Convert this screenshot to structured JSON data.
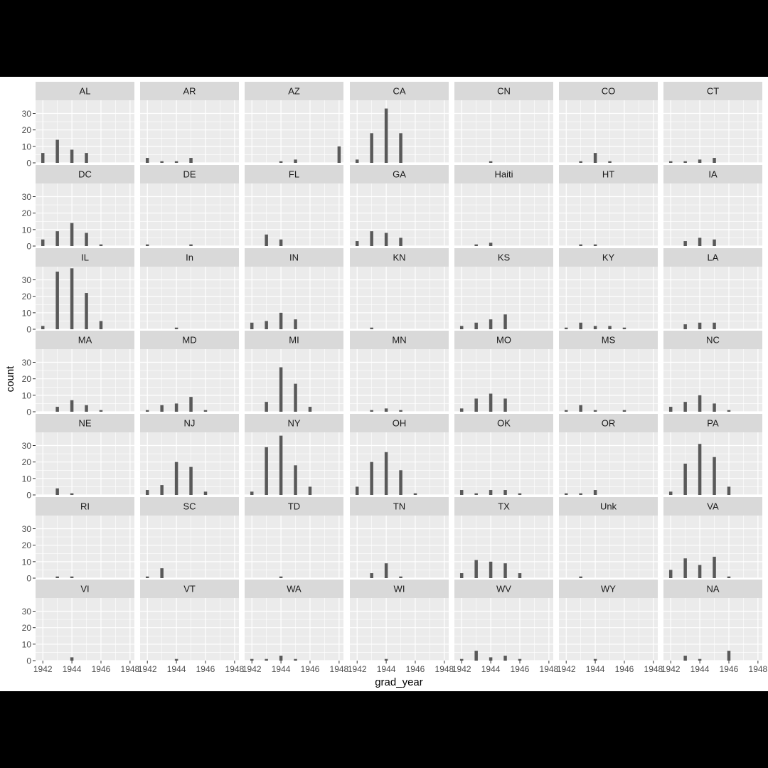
{
  "chart_data": {
    "type": "bar",
    "facet_by": "state",
    "ncol": 7,
    "xlabel": "grad_year",
    "ylabel": "count",
    "x_ticks": [
      1942,
      1944,
      1946,
      1948
    ],
    "y_ticks": [
      0,
      10,
      20,
      30
    ],
    "xlim": [
      1941.5,
      1948.3
    ],
    "ylim": [
      0,
      38
    ],
    "colors": {
      "bar": "#595959",
      "panel_bg": "#ebebeb",
      "strip_bg": "#d9d9d9",
      "grid": "#ffffff",
      "axis_text": "#4d4d4d"
    },
    "facets": [
      {
        "label": "AL",
        "bars": [
          {
            "x": 1942,
            "y": 6
          },
          {
            "x": 1943,
            "y": 14
          },
          {
            "x": 1944,
            "y": 8
          },
          {
            "x": 1945,
            "y": 6
          }
        ]
      },
      {
        "label": "AR",
        "bars": [
          {
            "x": 1942,
            "y": 3
          },
          {
            "x": 1943,
            "y": 1
          },
          {
            "x": 1944,
            "y": 1
          },
          {
            "x": 1945,
            "y": 3
          }
        ]
      },
      {
        "label": "AZ",
        "bars": [
          {
            "x": 1944,
            "y": 1
          },
          {
            "x": 1945,
            "y": 2
          },
          {
            "x": 1948,
            "y": 10
          }
        ]
      },
      {
        "label": "CA",
        "bars": [
          {
            "x": 1942,
            "y": 2
          },
          {
            "x": 1943,
            "y": 18
          },
          {
            "x": 1944,
            "y": 33
          },
          {
            "x": 1945,
            "y": 18
          }
        ]
      },
      {
        "label": "CN",
        "bars": [
          {
            "x": 1944,
            "y": 1
          }
        ]
      },
      {
        "label": "CO",
        "bars": [
          {
            "x": 1943,
            "y": 1
          },
          {
            "x": 1944,
            "y": 6
          },
          {
            "x": 1945,
            "y": 1
          }
        ]
      },
      {
        "label": "CT",
        "bars": [
          {
            "x": 1942,
            "y": 1
          },
          {
            "x": 1943,
            "y": 1
          },
          {
            "x": 1944,
            "y": 2
          },
          {
            "x": 1945,
            "y": 3
          }
        ]
      },
      {
        "label": "DC",
        "bars": [
          {
            "x": 1942,
            "y": 4
          },
          {
            "x": 1943,
            "y": 9
          },
          {
            "x": 1944,
            "y": 14
          },
          {
            "x": 1945,
            "y": 8
          },
          {
            "x": 1946,
            "y": 1
          }
        ]
      },
      {
        "label": "DE",
        "bars": [
          {
            "x": 1942,
            "y": 1
          },
          {
            "x": 1945,
            "y": 1
          }
        ]
      },
      {
        "label": "FL",
        "bars": [
          {
            "x": 1943,
            "y": 7
          },
          {
            "x": 1944,
            "y": 4
          }
        ]
      },
      {
        "label": "GA",
        "bars": [
          {
            "x": 1942,
            "y": 3
          },
          {
            "x": 1943,
            "y": 9
          },
          {
            "x": 1944,
            "y": 8
          },
          {
            "x": 1945,
            "y": 5
          }
        ]
      },
      {
        "label": "Haiti",
        "bars": [
          {
            "x": 1943,
            "y": 1
          },
          {
            "x": 1944,
            "y": 2
          }
        ]
      },
      {
        "label": "HT",
        "bars": [
          {
            "x": 1943,
            "y": 1
          },
          {
            "x": 1944,
            "y": 1
          }
        ]
      },
      {
        "label": "IA",
        "bars": [
          {
            "x": 1943,
            "y": 3
          },
          {
            "x": 1944,
            "y": 5
          },
          {
            "x": 1945,
            "y": 4
          }
        ]
      },
      {
        "label": "IL",
        "bars": [
          {
            "x": 1942,
            "y": 2
          },
          {
            "x": 1943,
            "y": 35
          },
          {
            "x": 1944,
            "y": 37
          },
          {
            "x": 1945,
            "y": 22
          },
          {
            "x": 1946,
            "y": 5
          }
        ]
      },
      {
        "label": "In",
        "bars": [
          {
            "x": 1944,
            "y": 1
          }
        ]
      },
      {
        "label": "IN",
        "bars": [
          {
            "x": 1942,
            "y": 4
          },
          {
            "x": 1943,
            "y": 5
          },
          {
            "x": 1944,
            "y": 10
          },
          {
            "x": 1945,
            "y": 6
          }
        ]
      },
      {
        "label": "KN",
        "bars": [
          {
            "x": 1943,
            "y": 1
          }
        ]
      },
      {
        "label": "KS",
        "bars": [
          {
            "x": 1942,
            "y": 2
          },
          {
            "x": 1943,
            "y": 4
          },
          {
            "x": 1944,
            "y": 6
          },
          {
            "x": 1945,
            "y": 9
          }
        ]
      },
      {
        "label": "KY",
        "bars": [
          {
            "x": 1942,
            "y": 1
          },
          {
            "x": 1943,
            "y": 4
          },
          {
            "x": 1944,
            "y": 2
          },
          {
            "x": 1945,
            "y": 2
          },
          {
            "x": 1946,
            "y": 1
          }
        ]
      },
      {
        "label": "LA",
        "bars": [
          {
            "x": 1943,
            "y": 3
          },
          {
            "x": 1944,
            "y": 4
          },
          {
            "x": 1945,
            "y": 4
          }
        ]
      },
      {
        "label": "MA",
        "bars": [
          {
            "x": 1943,
            "y": 3
          },
          {
            "x": 1944,
            "y": 7
          },
          {
            "x": 1945,
            "y": 4
          },
          {
            "x": 1946,
            "y": 1
          }
        ]
      },
      {
        "label": "MD",
        "bars": [
          {
            "x": 1942,
            "y": 1
          },
          {
            "x": 1943,
            "y": 4
          },
          {
            "x": 1944,
            "y": 5
          },
          {
            "x": 1945,
            "y": 9
          },
          {
            "x": 1946,
            "y": 1
          }
        ]
      },
      {
        "label": "MI",
        "bars": [
          {
            "x": 1943,
            "y": 6
          },
          {
            "x": 1944,
            "y": 27
          },
          {
            "x": 1945,
            "y": 17
          },
          {
            "x": 1946,
            "y": 3
          }
        ]
      },
      {
        "label": "MN",
        "bars": [
          {
            "x": 1943,
            "y": 1
          },
          {
            "x": 1944,
            "y": 2
          },
          {
            "x": 1945,
            "y": 1
          }
        ]
      },
      {
        "label": "MO",
        "bars": [
          {
            "x": 1942,
            "y": 2
          },
          {
            "x": 1943,
            "y": 8
          },
          {
            "x": 1944,
            "y": 11
          },
          {
            "x": 1945,
            "y": 8
          }
        ]
      },
      {
        "label": "MS",
        "bars": [
          {
            "x": 1942,
            "y": 1
          },
          {
            "x": 1943,
            "y": 4
          },
          {
            "x": 1944,
            "y": 1
          },
          {
            "x": 1946,
            "y": 1
          }
        ]
      },
      {
        "label": "NC",
        "bars": [
          {
            "x": 1942,
            "y": 3
          },
          {
            "x": 1943,
            "y": 6
          },
          {
            "x": 1944,
            "y": 10
          },
          {
            "x": 1945,
            "y": 5
          },
          {
            "x": 1946,
            "y": 1
          }
        ]
      },
      {
        "label": "NE",
        "bars": [
          {
            "x": 1943,
            "y": 4
          },
          {
            "x": 1944,
            "y": 1
          }
        ]
      },
      {
        "label": "NJ",
        "bars": [
          {
            "x": 1942,
            "y": 3
          },
          {
            "x": 1943,
            "y": 6
          },
          {
            "x": 1944,
            "y": 20
          },
          {
            "x": 1945,
            "y": 17
          },
          {
            "x": 1946,
            "y": 2
          }
        ]
      },
      {
        "label": "NY",
        "bars": [
          {
            "x": 1942,
            "y": 2
          },
          {
            "x": 1943,
            "y": 29
          },
          {
            "x": 1944,
            "y": 36
          },
          {
            "x": 1945,
            "y": 18
          },
          {
            "x": 1946,
            "y": 5
          }
        ]
      },
      {
        "label": "OH",
        "bars": [
          {
            "x": 1942,
            "y": 5
          },
          {
            "x": 1943,
            "y": 20
          },
          {
            "x": 1944,
            "y": 26
          },
          {
            "x": 1945,
            "y": 15
          },
          {
            "x": 1946,
            "y": 1
          }
        ]
      },
      {
        "label": "OK",
        "bars": [
          {
            "x": 1942,
            "y": 3
          },
          {
            "x": 1943,
            "y": 1
          },
          {
            "x": 1944,
            "y": 3
          },
          {
            "x": 1945,
            "y": 3
          },
          {
            "x": 1946,
            "y": 1
          }
        ]
      },
      {
        "label": "OR",
        "bars": [
          {
            "x": 1942,
            "y": 1
          },
          {
            "x": 1943,
            "y": 1
          },
          {
            "x": 1944,
            "y": 3
          }
        ]
      },
      {
        "label": "PA",
        "bars": [
          {
            "x": 1942,
            "y": 2
          },
          {
            "x": 1943,
            "y": 19
          },
          {
            "x": 1944,
            "y": 31
          },
          {
            "x": 1945,
            "y": 23
          },
          {
            "x": 1946,
            "y": 5
          }
        ]
      },
      {
        "label": "RI",
        "bars": [
          {
            "x": 1943,
            "y": 1
          },
          {
            "x": 1944,
            "y": 1
          }
        ]
      },
      {
        "label": "SC",
        "bars": [
          {
            "x": 1942,
            "y": 1
          },
          {
            "x": 1943,
            "y": 6
          }
        ]
      },
      {
        "label": "TD",
        "bars": [
          {
            "x": 1944,
            "y": 1
          }
        ]
      },
      {
        "label": "TN",
        "bars": [
          {
            "x": 1943,
            "y": 3
          },
          {
            "x": 1944,
            "y": 9
          },
          {
            "x": 1945,
            "y": 1
          }
        ]
      },
      {
        "label": "TX",
        "bars": [
          {
            "x": 1942,
            "y": 3
          },
          {
            "x": 1943,
            "y": 11
          },
          {
            "x": 1944,
            "y": 10
          },
          {
            "x": 1945,
            "y": 9
          },
          {
            "x": 1946,
            "y": 3
          }
        ]
      },
      {
        "label": "Unk",
        "bars": [
          {
            "x": 1943,
            "y": 1
          }
        ]
      },
      {
        "label": "VA",
        "bars": [
          {
            "x": 1942,
            "y": 5
          },
          {
            "x": 1943,
            "y": 12
          },
          {
            "x": 1944,
            "y": 8
          },
          {
            "x": 1945,
            "y": 13
          },
          {
            "x": 1946,
            "y": 1
          }
        ]
      },
      {
        "label": "VI",
        "bars": [
          {
            "x": 1944,
            "y": 2
          }
        ]
      },
      {
        "label": "VT",
        "bars": [
          {
            "x": 1944,
            "y": 1
          }
        ]
      },
      {
        "label": "WA",
        "bars": [
          {
            "x": 1942,
            "y": 1
          },
          {
            "x": 1943,
            "y": 1
          },
          {
            "x": 1944,
            "y": 3
          },
          {
            "x": 1945,
            "y": 1
          }
        ]
      },
      {
        "label": "WI",
        "bars": [
          {
            "x": 1944,
            "y": 1
          }
        ]
      },
      {
        "label": "WV",
        "bars": [
          {
            "x": 1942,
            "y": 1
          },
          {
            "x": 1943,
            "y": 6
          },
          {
            "x": 1944,
            "y": 2
          },
          {
            "x": 1945,
            "y": 3
          },
          {
            "x": 1946,
            "y": 1
          }
        ]
      },
      {
        "label": "WY",
        "bars": [
          {
            "x": 1944,
            "y": 1
          }
        ]
      },
      {
        "label": "NA",
        "bars": [
          {
            "x": 1943,
            "y": 3
          },
          {
            "x": 1944,
            "y": 1
          },
          {
            "x": 1946,
            "y": 6
          }
        ]
      }
    ]
  }
}
